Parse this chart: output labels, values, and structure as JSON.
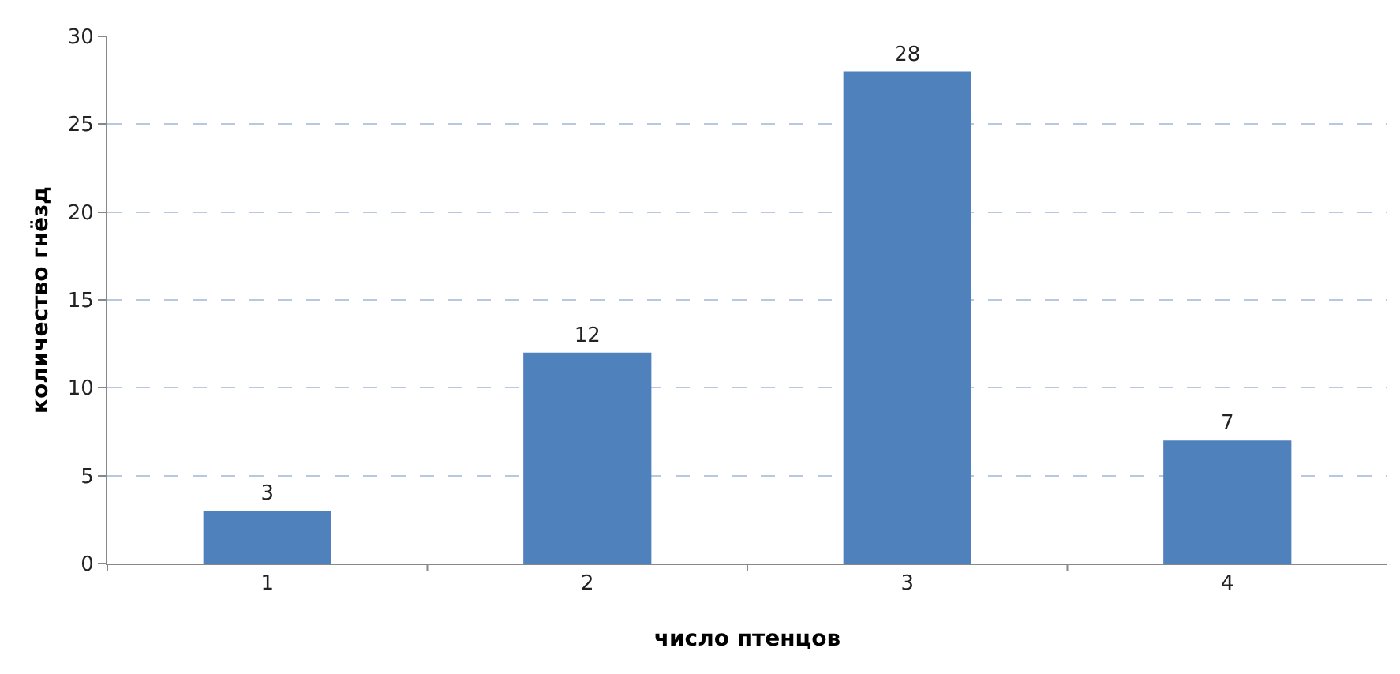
{
  "chart_data": {
    "type": "bar",
    "xlabel": "число птенцов",
    "ylabel": "количество гнёзд",
    "categories": [
      "1",
      "2",
      "3",
      "4"
    ],
    "series": [
      {
        "color": "#4f81bd",
        "values": [
          3,
          12,
          28,
          7
        ]
      }
    ],
    "ylim": [
      0,
      30
    ],
    "yticks": [
      0,
      5,
      10,
      15,
      20,
      25,
      30
    ],
    "grid": "y",
    "data_labels": true,
    "legend": false
  }
}
